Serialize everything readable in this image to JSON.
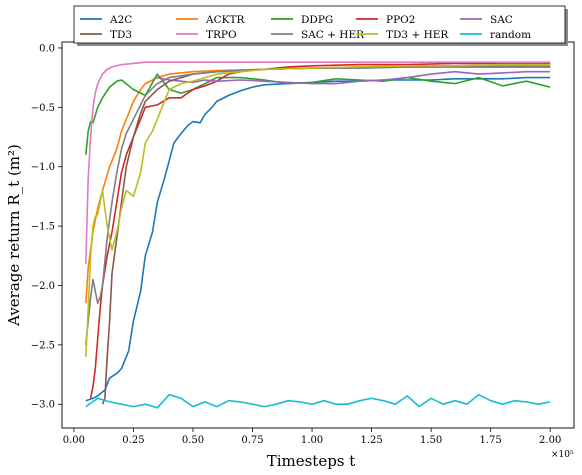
{
  "chart_data": {
    "type": "line",
    "title": "",
    "xlabel": "Timesteps t",
    "ylabel": "Average return R_t (m²)",
    "x_exponent_label": "×10⁵",
    "xlim": [
      -0.05,
      2.1
    ],
    "ylim": [
      -3.2,
      0.05
    ],
    "x_ticks": [
      0.0,
      0.25,
      0.5,
      0.75,
      1.0,
      1.25,
      1.5,
      1.75,
      2.0
    ],
    "x_tick_labels": [
      "0.00",
      "0.25",
      "0.50",
      "0.75",
      "1.00",
      "1.25",
      "1.50",
      "1.75",
      "2.00"
    ],
    "y_ticks": [
      -3.0,
      -2.5,
      -2.0,
      -1.5,
      -1.0,
      -0.5,
      0.0
    ],
    "y_tick_labels": [
      "−3.0",
      "−2.5",
      "−2.0",
      "−1.5",
      "−1.0",
      "−0.5",
      "0.0"
    ],
    "grid": false,
    "legend_position": "top-center",
    "legend_columns": 5,
    "series": [
      {
        "name": "A2C",
        "color": "#1f77b4",
        "x": [
          0.05,
          0.08,
          0.1,
          0.13,
          0.15,
          0.18,
          0.2,
          0.23,
          0.25,
          0.28,
          0.3,
          0.33,
          0.35,
          0.38,
          0.4,
          0.42,
          0.45,
          0.48,
          0.5,
          0.53,
          0.55,
          0.58,
          0.6,
          0.65,
          0.7,
          0.75,
          0.8,
          0.9,
          1.0,
          1.1,
          1.2,
          1.3,
          1.4,
          1.5,
          1.6,
          1.7,
          1.8,
          1.9,
          2.0
        ],
        "y": [
          -2.97,
          -2.95,
          -2.93,
          -2.88,
          -2.78,
          -2.74,
          -2.7,
          -2.55,
          -2.3,
          -2.05,
          -1.75,
          -1.55,
          -1.3,
          -1.1,
          -0.95,
          -0.8,
          -0.72,
          -0.65,
          -0.62,
          -0.63,
          -0.56,
          -0.5,
          -0.45,
          -0.4,
          -0.36,
          -0.33,
          -0.31,
          -0.3,
          -0.29,
          -0.28,
          -0.28,
          -0.27,
          -0.27,
          -0.27,
          -0.26,
          -0.26,
          -0.26,
          -0.25,
          -0.25
        ]
      },
      {
        "name": "ACKTR",
        "color": "#ff7f0e",
        "x": [
          0.05,
          0.06,
          0.07,
          0.08,
          0.09,
          0.1,
          0.12,
          0.15,
          0.18,
          0.2,
          0.23,
          0.25,
          0.28,
          0.3,
          0.35,
          0.4,
          0.5,
          0.6,
          0.8,
          1.0,
          1.2,
          1.4,
          1.6,
          1.8,
          2.0
        ],
        "y": [
          -2.15,
          -1.85,
          -1.7,
          -1.55,
          -1.45,
          -1.35,
          -1.2,
          -1.0,
          -0.85,
          -0.7,
          -0.55,
          -0.45,
          -0.35,
          -0.3,
          -0.25,
          -0.22,
          -0.2,
          -0.19,
          -0.18,
          -0.17,
          -0.16,
          -0.16,
          -0.15,
          -0.15,
          -0.15
        ]
      },
      {
        "name": "DDPG",
        "color": "#2ca02c",
        "x": [
          0.05,
          0.06,
          0.07,
          0.08,
          0.1,
          0.12,
          0.15,
          0.18,
          0.2,
          0.25,
          0.3,
          0.35,
          0.4,
          0.45,
          0.5,
          0.55,
          0.6,
          0.7,
          0.8,
          0.9,
          1.0,
          1.1,
          1.2,
          1.3,
          1.4,
          1.5,
          1.6,
          1.7,
          1.8,
          1.9,
          2.0
        ],
        "y": [
          -0.9,
          -0.7,
          -0.62,
          -0.63,
          -0.5,
          -0.42,
          -0.33,
          -0.28,
          -0.27,
          -0.35,
          -0.4,
          -0.22,
          -0.35,
          -0.38,
          -0.35,
          -0.3,
          -0.25,
          -0.25,
          -0.27,
          -0.3,
          -0.29,
          -0.26,
          -0.27,
          -0.28,
          -0.25,
          -0.28,
          -0.3,
          -0.25,
          -0.32,
          -0.28,
          -0.33
        ]
      },
      {
        "name": "PPO2",
        "color": "#d62728",
        "x": [
          0.07,
          0.08,
          0.09,
          0.1,
          0.11,
          0.12,
          0.14,
          0.16,
          0.18,
          0.2,
          0.22,
          0.25,
          0.28,
          0.3,
          0.35,
          0.4,
          0.45,
          0.5,
          0.55,
          0.6,
          0.65,
          0.7,
          0.8,
          0.9,
          1.0,
          1.2,
          1.4,
          1.6,
          1.8,
          2.0
        ],
        "y": [
          -2.95,
          -2.85,
          -2.7,
          -2.45,
          -2.2,
          -2.0,
          -1.75,
          -1.55,
          -1.3,
          -1.05,
          -0.9,
          -0.75,
          -0.6,
          -0.5,
          -0.48,
          -0.42,
          -0.42,
          -0.35,
          -0.32,
          -0.28,
          -0.22,
          -0.2,
          -0.18,
          -0.16,
          -0.15,
          -0.14,
          -0.14,
          -0.13,
          -0.13,
          -0.13
        ]
      },
      {
        "name": "SAC",
        "color": "#9467bd",
        "x": [
          0.35,
          0.4,
          0.45,
          0.5,
          0.55,
          0.6,
          0.7,
          0.8,
          0.9,
          1.0,
          1.1,
          1.2,
          1.3,
          1.4,
          1.5,
          1.6,
          1.7,
          1.8,
          1.9,
          2.0
        ],
        "y": [
          -0.25,
          -0.27,
          -0.28,
          -0.29,
          -0.27,
          -0.28,
          -0.27,
          -0.28,
          -0.29,
          -0.3,
          -0.3,
          -0.28,
          -0.27,
          -0.25,
          -0.22,
          -0.2,
          -0.22,
          -0.21,
          -0.2,
          -0.2
        ]
      },
      {
        "name": "TD3",
        "color": "#8c564b",
        "x": [
          0.12,
          0.13,
          0.14,
          0.15,
          0.16,
          0.18,
          0.2,
          0.22,
          0.25,
          0.28,
          0.3,
          0.35,
          0.4,
          0.5,
          0.6,
          0.8,
          1.0,
          1.2,
          1.4,
          1.6,
          1.8,
          2.0
        ],
        "y": [
          -3.0,
          -2.95,
          -2.6,
          -2.3,
          -1.9,
          -1.6,
          -1.3,
          -1.0,
          -0.75,
          -0.55,
          -0.45,
          -0.35,
          -0.28,
          -0.22,
          -0.2,
          -0.18,
          -0.17,
          -0.17,
          -0.16,
          -0.16,
          -0.16,
          -0.16
        ]
      },
      {
        "name": "TRPO",
        "color": "#e377c2",
        "x": [
          0.05,
          0.06,
          0.07,
          0.08,
          0.09,
          0.1,
          0.12,
          0.14,
          0.16,
          0.2,
          0.25,
          0.3,
          0.4,
          0.5,
          0.75,
          1.0,
          1.25,
          1.5,
          1.75,
          2.0
        ],
        "y": [
          -1.82,
          -1.1,
          -0.75,
          -0.5,
          -0.38,
          -0.3,
          -0.22,
          -0.18,
          -0.16,
          -0.14,
          -0.13,
          -0.12,
          -0.12,
          -0.12,
          -0.12,
          -0.12,
          -0.12,
          -0.12,
          -0.12,
          -0.12
        ]
      },
      {
        "name": "SAC + HER",
        "color": "#7f7f7f",
        "x": [
          0.05,
          0.06,
          0.07,
          0.08,
          0.09,
          0.1,
          0.11,
          0.12,
          0.14,
          0.16,
          0.18,
          0.2,
          0.22,
          0.25,
          0.28,
          0.3,
          0.35,
          0.4,
          0.5,
          0.6,
          0.8,
          1.0,
          1.2,
          1.4,
          1.6,
          1.8,
          2.0
        ],
        "y": [
          -2.5,
          -2.3,
          -2.1,
          -1.95,
          -2.05,
          -2.15,
          -2.1,
          -2.0,
          -1.6,
          -1.3,
          -1.05,
          -0.85,
          -0.72,
          -0.6,
          -0.48,
          -0.4,
          -0.3,
          -0.25,
          -0.22,
          -0.2,
          -0.18,
          -0.17,
          -0.17,
          -0.16,
          -0.16,
          -0.16,
          -0.16
        ]
      },
      {
        "name": "TD3 + HER",
        "color": "#bcbd22",
        "x": [
          0.05,
          0.06,
          0.07,
          0.08,
          0.09,
          0.1,
          0.12,
          0.14,
          0.16,
          0.18,
          0.2,
          0.22,
          0.25,
          0.28,
          0.3,
          0.33,
          0.35,
          0.38,
          0.4,
          0.45,
          0.5,
          0.55,
          0.6,
          0.7,
          0.8,
          1.0,
          1.2,
          1.4,
          1.6,
          1.8,
          2.0
        ],
        "y": [
          -2.6,
          -2.2,
          -1.75,
          -1.5,
          -1.42,
          -1.4,
          -1.2,
          -1.5,
          -1.7,
          -1.55,
          -1.35,
          -1.2,
          -1.25,
          -1.05,
          -0.8,
          -0.7,
          -0.6,
          -0.45,
          -0.35,
          -0.3,
          -0.28,
          -0.25,
          -0.22,
          -0.2,
          -0.18,
          -0.17,
          -0.16,
          -0.15,
          -0.15,
          -0.14,
          -0.14
        ]
      },
      {
        "name": "random",
        "color": "#17becf",
        "x": [
          0.05,
          0.1,
          0.15,
          0.2,
          0.25,
          0.3,
          0.35,
          0.4,
          0.45,
          0.5,
          0.55,
          0.6,
          0.65,
          0.7,
          0.75,
          0.8,
          0.85,
          0.9,
          0.95,
          1.0,
          1.05,
          1.1,
          1.15,
          1.2,
          1.25,
          1.3,
          1.35,
          1.4,
          1.45,
          1.5,
          1.55,
          1.6,
          1.65,
          1.7,
          1.75,
          1.8,
          1.85,
          1.9,
          1.95,
          2.0
        ],
        "y": [
          -3.02,
          -2.95,
          -2.98,
          -3.0,
          -3.02,
          -3.0,
          -3.03,
          -2.92,
          -2.95,
          -3.02,
          -2.98,
          -3.02,
          -2.97,
          -2.98,
          -3.0,
          -3.02,
          -3.0,
          -2.97,
          -2.98,
          -3.0,
          -2.97,
          -3.0,
          -3.0,
          -2.97,
          -2.95,
          -2.97,
          -3.0,
          -2.93,
          -3.02,
          -2.95,
          -3.0,
          -2.97,
          -3.0,
          -2.92,
          -2.97,
          -3.0,
          -2.97,
          -2.98,
          -3.0,
          -2.98
        ]
      }
    ]
  }
}
